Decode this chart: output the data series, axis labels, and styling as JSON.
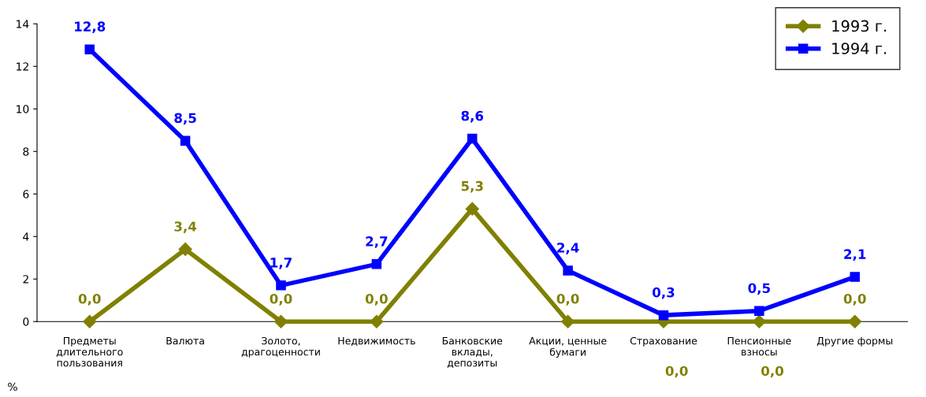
{
  "chart_data": {
    "type": "line",
    "ylabel": "%",
    "categories": [
      "Предметы\nдлительного\nпользования",
      "Валюта",
      "Золото,\nдрагоценности",
      "Недвижимость",
      "Банковские\nвклады,\nдепозиты",
      "Акции, ценные\nбумаги",
      "Страхование",
      "Пенсионные\nвзносы",
      "Другие формы"
    ],
    "series": [
      {
        "name": "1993 г.",
        "color": "#808000",
        "marker": "diamond",
        "values": [
          0.0,
          3.4,
          0.0,
          0.0,
          5.3,
          0.0,
          0.0,
          0.0,
          0.0
        ],
        "value_labels": [
          "0,0",
          "3,4",
          "0,0",
          "0,0",
          "5,3",
          "0,0",
          "0,0",
          "0,0",
          "0,0"
        ]
      },
      {
        "name": "1994 г.",
        "color": "#0000ff",
        "marker": "square",
        "values": [
          12.8,
          8.5,
          1.7,
          2.7,
          8.6,
          2.4,
          0.3,
          0.5,
          2.1
        ],
        "value_labels": [
          "12,8",
          "8,5",
          "1,7",
          "2,7",
          "8,6",
          "2,4",
          "0,3",
          "0,5",
          "2,1"
        ]
      }
    ],
    "ylim": [
      0,
      14
    ],
    "yticks": [
      0,
      2,
      4,
      6,
      8,
      10,
      12,
      14
    ],
    "grid": false,
    "legend": "top right",
    "line_style": "solid"
  }
}
